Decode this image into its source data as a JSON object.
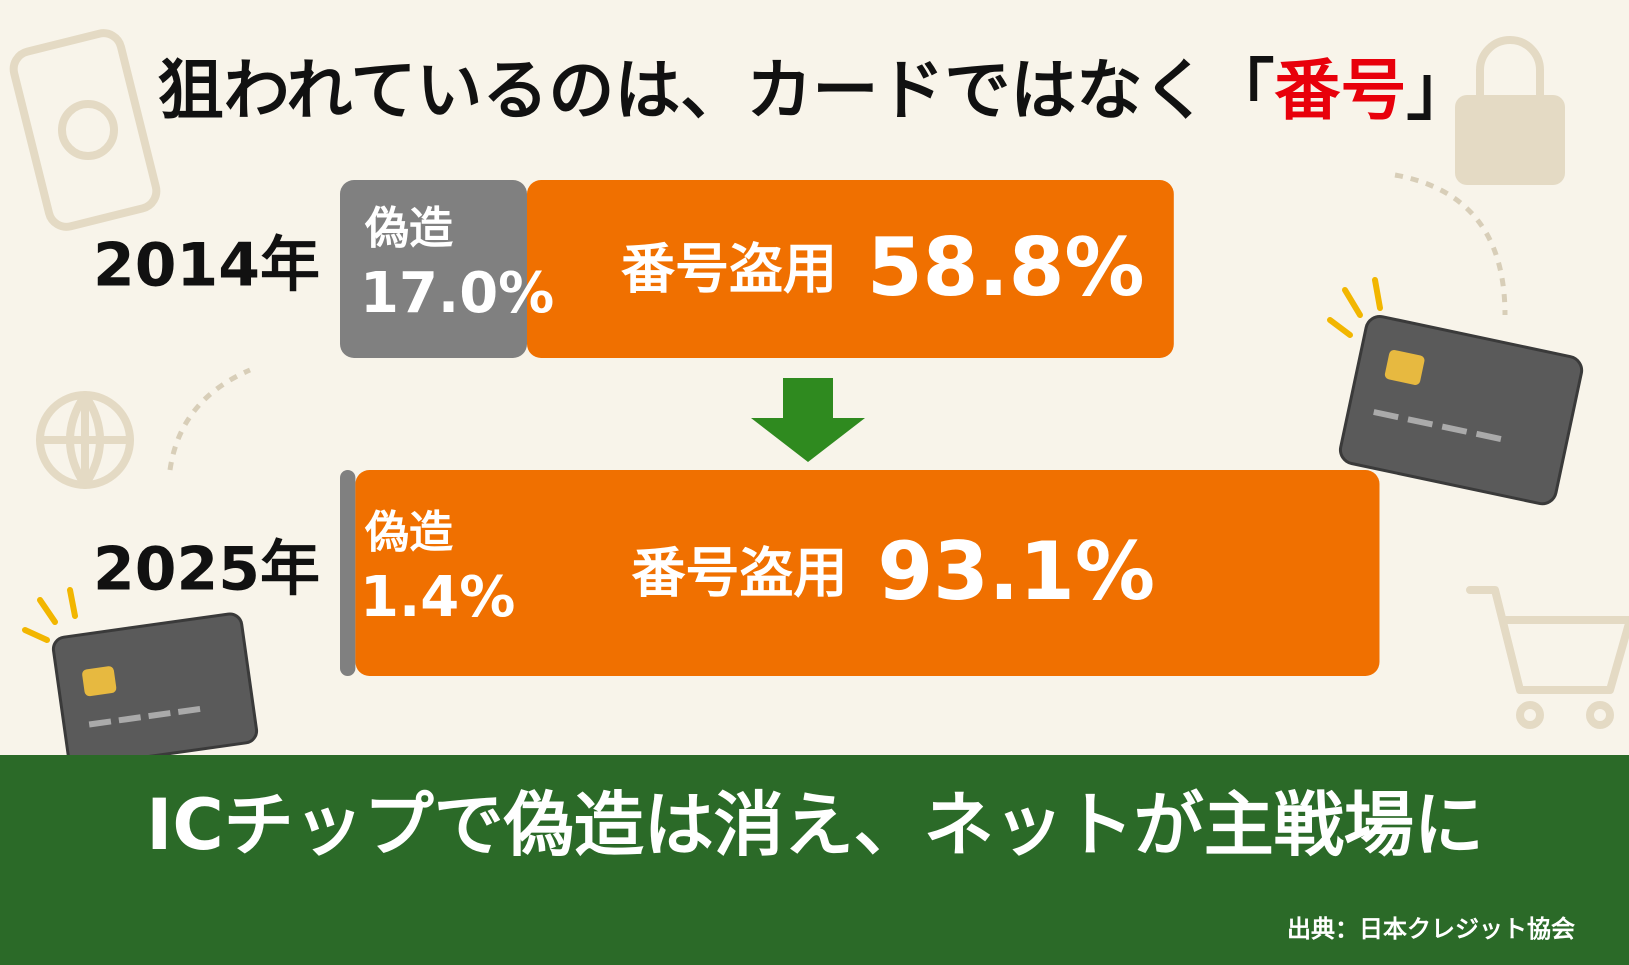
{
  "chart_data": {
    "type": "bar",
    "orientation": "horizontal",
    "stacked": true,
    "title": [
      "狙われているのは、カードではなく「",
      "番号",
      "」"
    ],
    "title_highlight_color": "#e8000b",
    "categories": [
      "2014年",
      "2025年"
    ],
    "series": [
      {
        "name": "偽造",
        "color": "#808080",
        "values": [
          17.0,
          1.4
        ],
        "value_labels": [
          "17.0%",
          "1.4%"
        ]
      },
      {
        "name": "番号盗用",
        "color": "#f07000",
        "values": [
          58.8,
          93.1
        ],
        "value_labels": [
          "58.8%",
          "93.1%"
        ]
      }
    ],
    "banner": "ICチップで偽造は消え、ネットが主戦場に",
    "source": "出典：日本クレジット協会"
  }
}
